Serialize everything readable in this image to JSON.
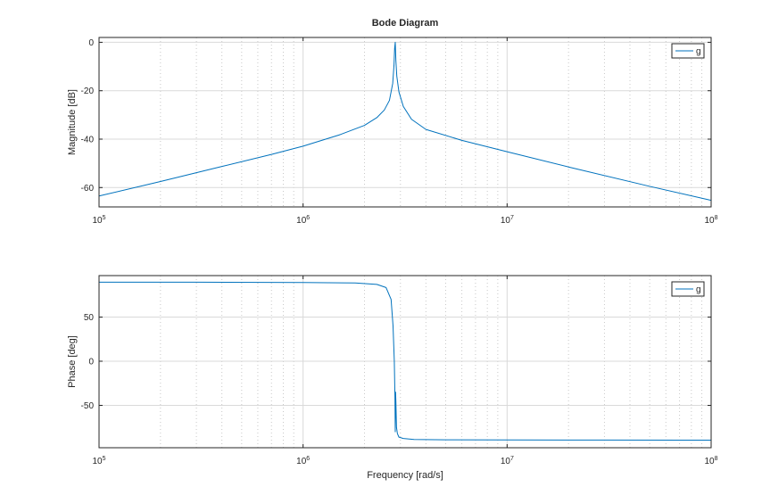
{
  "colors": {
    "series": "#0072bd",
    "grid_major": "#d9d9d9",
    "grid_minor": "#c8c8c8",
    "axis": "#262626",
    "background": "#ffffff"
  },
  "chart_data": [
    {
      "type": "line",
      "title": "Bode Diagram",
      "xlabel": "",
      "ylabel": "Magnitude [dB]",
      "xscale": "log",
      "xlim": [
        100000,
        100000000
      ],
      "ylim": [
        -68,
        2
      ],
      "yticks": [
        0,
        -20,
        -40,
        -60
      ],
      "ytick_labels": [
        "0",
        "-20",
        "-40",
        "-60"
      ],
      "xticks": [
        100000,
        1000000,
        10000000,
        100000000
      ],
      "xtick_labels": [
        {
          "base": "10",
          "exp": "5"
        },
        {
          "base": "10",
          "exp": "6"
        },
        {
          "base": "10",
          "exp": "7"
        },
        {
          "base": "10",
          "exp": "8"
        }
      ],
      "grid": true,
      "minor_grid": true,
      "legend": {
        "position": "top-right",
        "entries": [
          "g"
        ]
      },
      "series": [
        {
          "name": "g",
          "x": [
            100000,
            200000,
            400000,
            700000,
            1000000,
            1500000,
            2000000,
            2300000,
            2500000,
            2650000,
            2750000,
            2790000,
            2810000,
            2830000,
            2850000,
            2880000,
            2950000,
            3100000,
            3400000,
            4000000,
            6000000,
            10000000,
            20000000,
            50000000,
            100000000
          ],
          "y": [
            -63.5,
            -57.5,
            -51.3,
            -46.3,
            -42.9,
            -38.3,
            -34.3,
            -31.1,
            -28.0,
            -24.0,
            -17.0,
            -9.5,
            -2.5,
            0,
            -7.5,
            -14.0,
            -20.5,
            -26.5,
            -31.8,
            -36.0,
            -40.5,
            -45.2,
            -51.5,
            -59.5,
            -65.3
          ]
        }
      ]
    },
    {
      "type": "line",
      "title": "",
      "xlabel": "Frequency [rad/s]",
      "ylabel": "Phase [deg]",
      "xscale": "log",
      "xlim": [
        100000,
        100000000
      ],
      "ylim": [
        -98,
        97
      ],
      "yticks": [
        50,
        0,
        -50
      ],
      "ytick_labels": [
        "50",
        "0",
        "-50"
      ],
      "xticks": [
        100000,
        1000000,
        10000000,
        100000000
      ],
      "xtick_labels": [
        {
          "base": "10",
          "exp": "5"
        },
        {
          "base": "10",
          "exp": "6"
        },
        {
          "base": "10",
          "exp": "7"
        },
        {
          "base": "10",
          "exp": "8"
        }
      ],
      "grid": true,
      "minor_grid": true,
      "legend": {
        "position": "top-right",
        "entries": [
          "g"
        ]
      },
      "series": [
        {
          "name": "g",
          "x": [
            100000,
            300000,
            1000000,
            1800000,
            2300000,
            2550000,
            2700000,
            2760000,
            2800000,
            2820000,
            2830000,
            2840000,
            2850000,
            2870000,
            2900000,
            2950000,
            3100000,
            3500000,
            5000000,
            10000000,
            30000000,
            100000000
          ],
          "y": [
            89.5,
            89.5,
            89.2,
            88.7,
            87.0,
            83.5,
            70.0,
            40.0,
            0.0,
            -40.0,
            -80.0,
            -35.0,
            -45.0,
            -75.0,
            -82.0,
            -86.0,
            -87.5,
            -88.7,
            -89.0,
            -89.2,
            -89.3,
            -89.4
          ]
        }
      ]
    }
  ]
}
